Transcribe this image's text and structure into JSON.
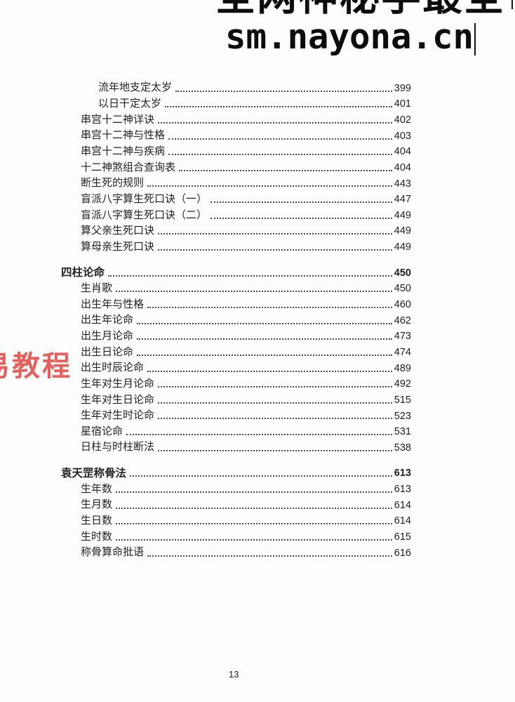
{
  "watermark": {
    "line1": "全网神秘学最全",
    "line2": "sm.nayona.cn"
  },
  "side_watermark": {
    "text": "易教程",
    "color": "#e25450"
  },
  "toc": {
    "entries": [
      {
        "level": 3,
        "title": "流年地支定太岁",
        "page": "399"
      },
      {
        "level": 3,
        "title": "以日干定太岁",
        "page": "401"
      },
      {
        "level": 2,
        "title": "串宫十二神详诀",
        "page": "402"
      },
      {
        "level": 2,
        "title": "串宫十二神与性格",
        "page": "403"
      },
      {
        "level": 2,
        "title": "串宫十二神与疾病",
        "page": "404"
      },
      {
        "level": 2,
        "title": "十二神煞组合查询表",
        "page": "404"
      },
      {
        "level": 2,
        "title": "断生死的规则",
        "page": "443"
      },
      {
        "level": 2,
        "title": "盲派八字算生死口诀（一）",
        "page": "447"
      },
      {
        "level": 2,
        "title": "盲派八字算生死口诀（二）",
        "page": "449"
      },
      {
        "level": 2,
        "title": "算父亲生死口诀",
        "page": "449"
      },
      {
        "level": 2,
        "title": "算母亲生死口诀",
        "page": "449"
      },
      {
        "level": 1,
        "title": "四柱论命",
        "page": "450"
      },
      {
        "level": 2,
        "title": "生肖歌",
        "page": "450"
      },
      {
        "level": 2,
        "title": "出生年与性格",
        "page": "460"
      },
      {
        "level": 2,
        "title": "出生年论命",
        "page": "462"
      },
      {
        "level": 2,
        "title": "出生月论命",
        "page": "473"
      },
      {
        "level": 2,
        "title": "出生日论命",
        "page": "474"
      },
      {
        "level": 2,
        "title": "出生时辰论命",
        "page": "489"
      },
      {
        "level": 2,
        "title": "生年对生月论命",
        "page": "492"
      },
      {
        "level": 2,
        "title": "生年对生日论命",
        "page": "515"
      },
      {
        "level": 2,
        "title": "生年对生时论命",
        "page": "523"
      },
      {
        "level": 2,
        "title": "星宿论命",
        "page": "531"
      },
      {
        "level": 2,
        "title": "日柱与时柱断法",
        "page": "538"
      },
      {
        "level": 1,
        "title": "袁天罡称骨法",
        "page": "613"
      },
      {
        "level": 2,
        "title": "生年数",
        "page": "613"
      },
      {
        "level": 2,
        "title": "生月数",
        "page": "614"
      },
      {
        "level": 2,
        "title": "生日数",
        "page": "614"
      },
      {
        "level": 2,
        "title": "生时数",
        "page": "615"
      },
      {
        "level": 2,
        "title": "称骨算命批语",
        "page": "616"
      }
    ]
  },
  "footer": {
    "page_number": "13"
  }
}
